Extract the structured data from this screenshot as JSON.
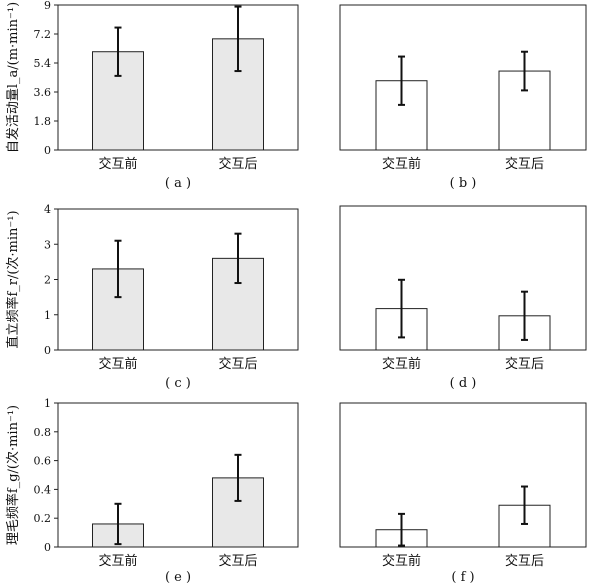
{
  "chart_data": [
    {
      "id": "a",
      "type": "bar",
      "panel_label": "( a )",
      "categories": [
        "交互前",
        "交互后"
      ],
      "values": [
        6.1,
        6.9
      ],
      "errors": [
        1.5,
        2.0
      ],
      "bar_color": "#e8e8e8",
      "ylim": [
        0,
        9
      ],
      "yticks": [
        "0",
        "1.8",
        "3.6",
        "5.4",
        "7.2",
        "9"
      ],
      "ylabel": "自发活动量l_a/(m·min⁻¹)"
    },
    {
      "id": "b",
      "type": "bar",
      "panel_label": "( b )",
      "categories": [
        "交互前",
        "交互后"
      ],
      "values": [
        4.3,
        4.9
      ],
      "errors": [
        1.5,
        1.2
      ],
      "bar_color": "#ffffff",
      "ylim": [
        0,
        9
      ]
    },
    {
      "id": "c",
      "type": "bar",
      "panel_label": "( c )",
      "categories": [
        "交互前",
        "交互后"
      ],
      "values": [
        2.3,
        2.6
      ],
      "errors": [
        0.8,
        0.7
      ],
      "bar_color": "#e8e8e8",
      "ylim": [
        0,
        4
      ],
      "yticks": [
        "0",
        "1",
        "2",
        "3",
        "4"
      ],
      "ylabel": "直立频率f_r/(次·min⁻¹)"
    },
    {
      "id": "d",
      "type": "bar",
      "panel_label": "( d )",
      "categories": [
        "交互前",
        "交互后"
      ],
      "values": [
        1.15,
        0.95
      ],
      "errors": [
        0.8,
        0.67
      ],
      "bar_color": "#ffffff",
      "ylim": [
        0,
        4
      ]
    },
    {
      "id": "e",
      "type": "bar",
      "panel_label": "( e )",
      "categories": [
        "交互前",
        "交互后"
      ],
      "values": [
        0.16,
        0.48
      ],
      "errors": [
        0.14,
        0.16
      ],
      "bar_color": "#e8e8e8",
      "ylim": [
        0,
        1
      ],
      "yticks": [
        "0",
        "0.2",
        "0.4",
        "0.6",
        "0.8",
        "1"
      ],
      "ylabel": "理毛频率f_g/(次·min⁻¹)"
    },
    {
      "id": "f",
      "type": "bar",
      "panel_label": "( f )",
      "categories": [
        "交互前",
        "交互后"
      ],
      "values": [
        0.12,
        0.29
      ],
      "errors": [
        0.11,
        0.13
      ],
      "bar_color": "#ffffff",
      "ylim": [
        0,
        1
      ]
    }
  ]
}
